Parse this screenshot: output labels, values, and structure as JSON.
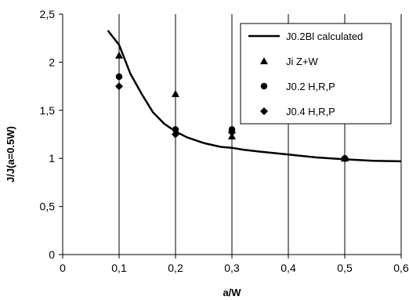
{
  "chart_data": {
    "type": "line",
    "xlabel": "a/W",
    "ylabel": "J/J(a=0.5W)",
    "xlim": [
      0,
      0.6
    ],
    "ylim": [
      0,
      2.5
    ],
    "x_ticks": [
      "0",
      "0,1",
      "0,2",
      "0,3",
      "0,4",
      "0,5",
      "0,6"
    ],
    "y_ticks": [
      "0",
      "0,5",
      "1",
      "1,5",
      "2",
      "2,5"
    ],
    "grid": "vertical",
    "legend_position": "top-right",
    "series": [
      {
        "name": "J0.2Bl calculated",
        "kind": "line",
        "marker": "none",
        "color": "#000000",
        "x": [
          0.08,
          0.1,
          0.12,
          0.14,
          0.16,
          0.18,
          0.2,
          0.22,
          0.25,
          0.28,
          0.3,
          0.32,
          0.35,
          0.4,
          0.45,
          0.5,
          0.55,
          0.6
        ],
        "y": [
          2.33,
          2.18,
          1.88,
          1.67,
          1.48,
          1.36,
          1.28,
          1.22,
          1.16,
          1.12,
          1.11,
          1.09,
          1.07,
          1.04,
          1.01,
          0.99,
          0.975,
          0.97
        ]
      },
      {
        "name": "Ji Z+W",
        "kind": "scatter",
        "marker": "triangle",
        "color": "#000000",
        "x": [
          0.1,
          0.2,
          0.3,
          0.5
        ],
        "y": [
          2.07,
          1.67,
          1.23,
          1.0
        ]
      },
      {
        "name": "J0.2 H,R,P",
        "kind": "scatter",
        "marker": "circle",
        "color": "#000000",
        "x": [
          0.1,
          0.2,
          0.3,
          0.5
        ],
        "y": [
          1.85,
          1.3,
          1.3,
          1.0
        ]
      },
      {
        "name": "J0.4 H,R,P",
        "kind": "scatter",
        "marker": "diamond",
        "color": "#000000",
        "x": [
          0.1,
          0.2,
          0.3,
          0.5
        ],
        "y": [
          1.75,
          1.25,
          1.27,
          1.0
        ]
      }
    ]
  }
}
